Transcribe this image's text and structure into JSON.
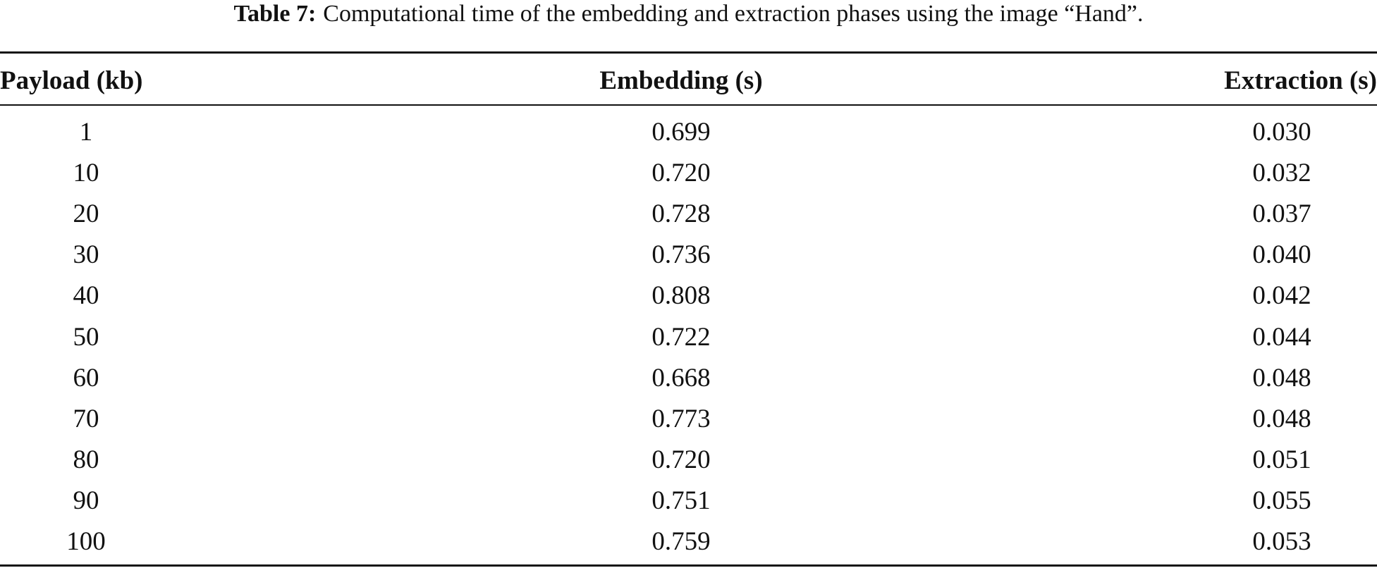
{
  "caption": {
    "label": "Table 7:",
    "text": "Computational time of the embedding and extraction phases using the image “Hand”."
  },
  "table": {
    "headers": [
      "Payload (kb)",
      "Embedding (s)",
      "Extraction (s)"
    ],
    "rows": [
      [
        "1",
        "0.699",
        "0.030"
      ],
      [
        "10",
        "0.720",
        "0.032"
      ],
      [
        "20",
        "0.728",
        "0.037"
      ],
      [
        "30",
        "0.736",
        "0.040"
      ],
      [
        "40",
        "0.808",
        "0.042"
      ],
      [
        "50",
        "0.722",
        "0.044"
      ],
      [
        "60",
        "0.668",
        "0.048"
      ],
      [
        "70",
        "0.773",
        "0.048"
      ],
      [
        "80",
        "0.720",
        "0.051"
      ],
      [
        "90",
        "0.751",
        "0.055"
      ],
      [
        "100",
        "0.759",
        "0.053"
      ]
    ]
  }
}
